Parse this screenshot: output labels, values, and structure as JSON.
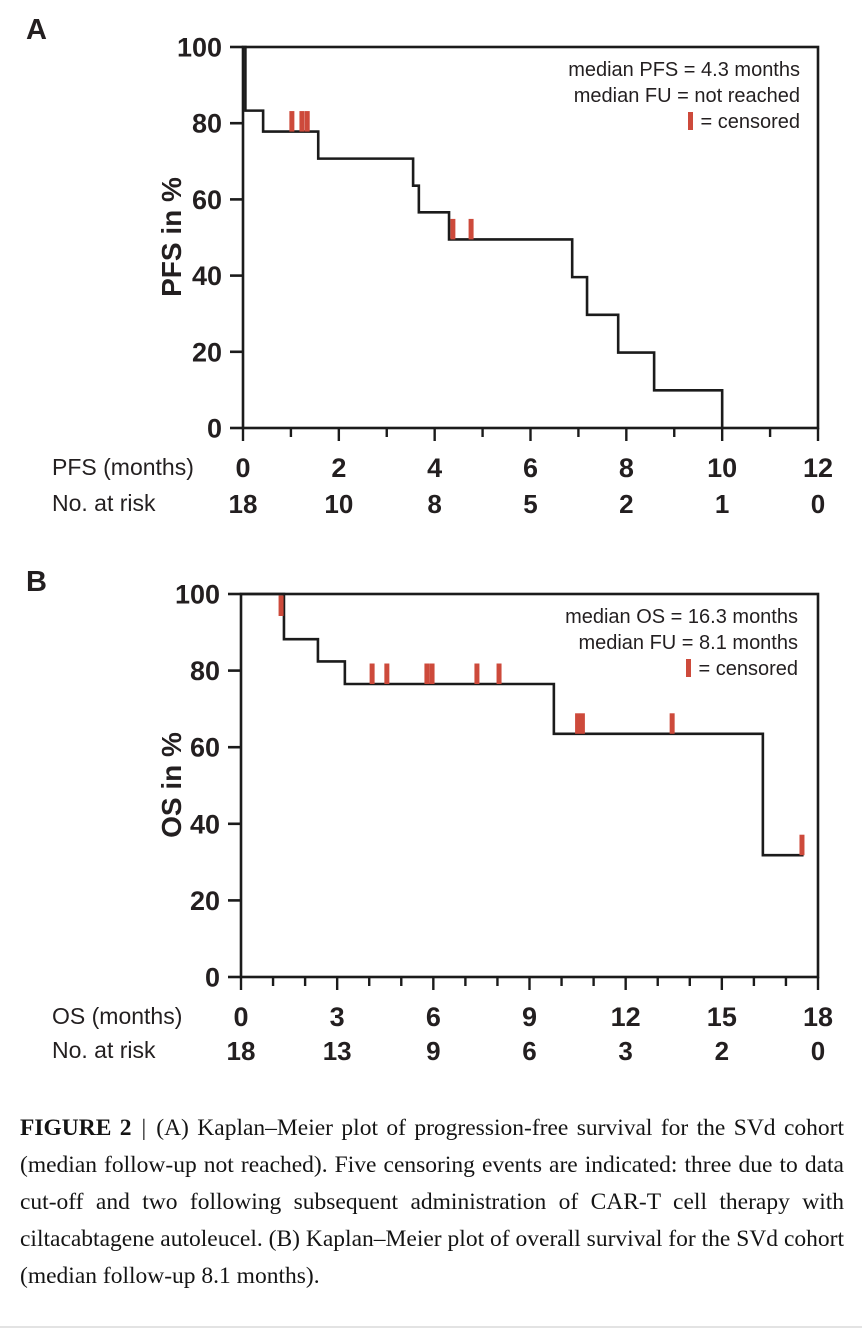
{
  "figure": {
    "caption": {
      "label": "FIGURE 2",
      "separator": "|",
      "text": "(A) Kaplan–Meier plot of progression-free survival for the SVd cohort (median follow-up not reached). Five censoring events are indicated: three due to data cut-off and two following subsequent administration of CAR-T cell therapy with ciltacabtagene autoleucel. (B) Kaplan–Meier plot of overall survival for the SVd cohort (median follow-up 8.1 months)."
    },
    "colors": {
      "curve": "#1b1b1b",
      "censor_tick": "#cd4a3b",
      "text": "#231f20"
    }
  },
  "chart_data": [
    {
      "type": "line",
      "subtype": "kaplan-meier-step",
      "panel_label": "A",
      "y_axis_label": "PFS in %",
      "x_axis_label": "PFS (months)",
      "risk_row_label": "No. at risk",
      "legend": [
        "median PFS = 4.3 months",
        "median FU = not reached",
        "= censored"
      ],
      "legend_position": "top-right",
      "grid": false,
      "xlim": [
        0,
        12
      ],
      "ylim": [
        0,
        100
      ],
      "x_major_ticks": [
        0,
        2,
        4,
        6,
        8,
        10,
        12
      ],
      "x_minor_step": 1,
      "y_ticks": [
        0,
        20,
        40,
        60,
        80,
        100
      ],
      "risk_counts": [
        18,
        10,
        8,
        5,
        2,
        1,
        0
      ],
      "km_steps": [
        [
          0,
          100
        ],
        [
          0.05,
          83.3
        ],
        [
          0.42,
          77.8
        ],
        [
          1.57,
          70.7
        ],
        [
          3.55,
          63.6
        ],
        [
          3.67,
          56.6
        ],
        [
          4.3,
          49.5
        ],
        [
          6.87,
          39.6
        ],
        [
          7.18,
          29.7
        ],
        [
          7.83,
          19.8
        ],
        [
          8.58,
          9.9
        ],
        [
          10.0,
          0
        ]
      ],
      "curve_end": 10.0,
      "censor_marks": [
        [
          1.02,
          77.8
        ],
        [
          1.23,
          77.8
        ],
        [
          1.34,
          77.8
        ],
        [
          4.38,
          49.5
        ],
        [
          4.76,
          49.5
        ]
      ]
    },
    {
      "type": "line",
      "subtype": "kaplan-meier-step",
      "panel_label": "B",
      "y_axis_label": "OS in %",
      "x_axis_label": "OS (months)",
      "risk_row_label": "No. at risk",
      "legend": [
        "median OS = 16.3 months",
        "median FU = 8.1 months",
        "= censored"
      ],
      "legend_position": "top-right",
      "grid": false,
      "xlim": [
        0,
        18
      ],
      "ylim": [
        0,
        100
      ],
      "x_major_ticks": [
        0,
        3,
        6,
        9,
        12,
        15,
        18
      ],
      "x_minor_step": 1,
      "y_ticks": [
        0,
        20,
        40,
        60,
        80,
        100
      ],
      "risk_counts": [
        18,
        13,
        9,
        6,
        3,
        2,
        0
      ],
      "km_steps": [
        [
          0,
          100
        ],
        [
          1.34,
          88.2
        ],
        [
          2.4,
          82.4
        ],
        [
          3.24,
          76.5
        ],
        [
          9.76,
          63.5
        ],
        [
          16.28,
          31.8
        ]
      ],
      "curve_end": 17.55,
      "censor_marks": [
        [
          1.25,
          100,
          "below"
        ],
        [
          4.09,
          76.5
        ],
        [
          4.55,
          76.5
        ],
        [
          5.8,
          76.5
        ],
        [
          5.96,
          76.5
        ],
        [
          7.36,
          76.5
        ],
        [
          8.05,
          76.5
        ],
        [
          10.5,
          63.5
        ],
        [
          10.65,
          63.5
        ],
        [
          13.45,
          63.5
        ],
        [
          17.5,
          31.8
        ]
      ]
    }
  ]
}
